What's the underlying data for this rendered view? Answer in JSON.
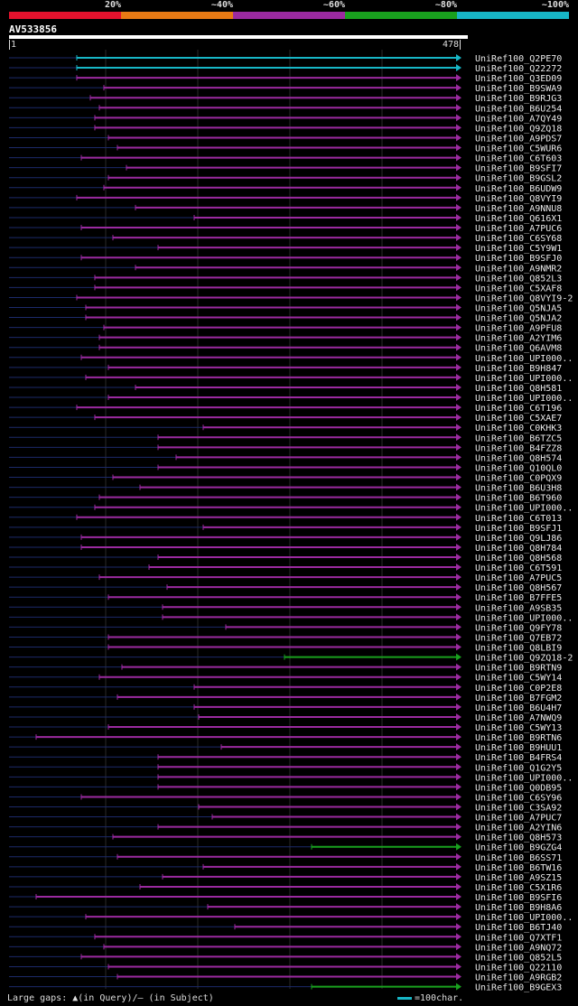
{
  "legend": {
    "labels": [
      "20%",
      "~40%",
      "~60%",
      "~80%",
      "~100%"
    ],
    "colors": [
      "#e3122d",
      "#e87a14",
      "#9b2aa0",
      "#19a11e",
      "#17b6c6"
    ]
  },
  "query": {
    "id": "AV533856",
    "start": "1",
    "end": "478"
  },
  "footer": {
    "gaps_text": "Large gaps: ▲(in Query)/– (in Subject)",
    "scale_text": "=100char."
  },
  "hits": [
    {
      "label": "UniRef100_Q2PE70",
      "start": 0.15,
      "color": "cyan"
    },
    {
      "label": "UniRef100_Q22272",
      "start": 0.15,
      "color": "cyan"
    },
    {
      "label": "UniRef100_Q3ED09",
      "start": 0.15,
      "color": "magenta"
    },
    {
      "label": "UniRef100_B9SWA9",
      "start": 0.21,
      "color": "magenta"
    },
    {
      "label": "UniRef100_B9RJG3",
      "start": 0.18,
      "color": "magenta"
    },
    {
      "label": "UniRef100_B6U254",
      "start": 0.2,
      "color": "magenta"
    },
    {
      "label": "UniRef100_A7QY49",
      "start": 0.19,
      "color": "magenta"
    },
    {
      "label": "UniRef100_Q9ZQ18",
      "start": 0.19,
      "color": "magenta"
    },
    {
      "label": "UniRef100_A9PDS7",
      "start": 0.22,
      "color": "magenta"
    },
    {
      "label": "UniRef100_C5WUR6",
      "start": 0.24,
      "color": "magenta"
    },
    {
      "label": "UniRef100_C6T603",
      "start": 0.16,
      "color": "magenta"
    },
    {
      "label": "UniRef100_B9SFI7",
      "start": 0.26,
      "color": "magenta"
    },
    {
      "label": "UniRef100_B9GSL2",
      "start": 0.22,
      "color": "magenta"
    },
    {
      "label": "UniRef100_B6UDW9",
      "start": 0.21,
      "color": "magenta"
    },
    {
      "label": "UniRef100_Q8VYI9",
      "start": 0.15,
      "color": "magenta"
    },
    {
      "label": "UniRef100_A9NNU8",
      "start": 0.28,
      "color": "magenta"
    },
    {
      "label": "UniRef100_Q616X1",
      "start": 0.41,
      "color": "magenta"
    },
    {
      "label": "UniRef100_A7PUC6",
      "start": 0.16,
      "color": "magenta"
    },
    {
      "label": "UniRef100_C6SY68",
      "start": 0.23,
      "color": "magenta"
    },
    {
      "label": "UniRef100_C5Y9W1",
      "start": 0.33,
      "color": "magenta"
    },
    {
      "label": "UniRef100_B9SFJ0",
      "start": 0.16,
      "color": "magenta"
    },
    {
      "label": "UniRef100_A9NMR2",
      "start": 0.28,
      "color": "magenta"
    },
    {
      "label": "UniRef100_Q852L3",
      "start": 0.19,
      "color": "magenta"
    },
    {
      "label": "UniRef100_C5XAF8",
      "start": 0.19,
      "color": "magenta"
    },
    {
      "label": "UniRef100_Q8VYI9-2",
      "start": 0.15,
      "color": "magenta"
    },
    {
      "label": "UniRef100_Q5NJA5",
      "start": 0.17,
      "color": "magenta"
    },
    {
      "label": "UniRef100_Q5NJA2",
      "start": 0.17,
      "color": "magenta"
    },
    {
      "label": "UniRef100_A9PFU8",
      "start": 0.21,
      "color": "magenta"
    },
    {
      "label": "UniRef100_A2YIM6",
      "start": 0.2,
      "color": "magenta"
    },
    {
      "label": "UniRef100_Q6AVM8",
      "start": 0.2,
      "color": "magenta"
    },
    {
      "label": "UniRef100_UPI000..",
      "start": 0.16,
      "color": "magenta"
    },
    {
      "label": "UniRef100_B9H847",
      "start": 0.22,
      "color": "magenta"
    },
    {
      "label": "UniRef100_UPI000..",
      "start": 0.17,
      "color": "magenta"
    },
    {
      "label": "UniRef100_Q8H581",
      "start": 0.28,
      "color": "magenta"
    },
    {
      "label": "UniRef100_UPI000..",
      "start": 0.22,
      "color": "magenta"
    },
    {
      "label": "UniRef100_C6T196",
      "start": 0.15,
      "color": "magenta"
    },
    {
      "label": "UniRef100_C5XAE7",
      "start": 0.19,
      "color": "magenta"
    },
    {
      "label": "UniRef100_C0KHK3",
      "start": 0.43,
      "color": "magenta"
    },
    {
      "label": "UniRef100_B6TZC5",
      "start": 0.33,
      "color": "magenta"
    },
    {
      "label": "UniRef100_B4FZZ8",
      "start": 0.33,
      "color": "magenta"
    },
    {
      "label": "UniRef100_Q8H574",
      "start": 0.37,
      "color": "magenta"
    },
    {
      "label": "UniRef100_Q10QL0",
      "start": 0.33,
      "color": "magenta"
    },
    {
      "label": "UniRef100_C0PQX9",
      "start": 0.23,
      "color": "magenta"
    },
    {
      "label": "UniRef100_B6U3H8",
      "start": 0.29,
      "color": "magenta"
    },
    {
      "label": "UniRef100_B6T960",
      "start": 0.2,
      "color": "magenta"
    },
    {
      "label": "UniRef100_UPI000..",
      "start": 0.19,
      "color": "magenta"
    },
    {
      "label": "UniRef100_C6T013",
      "start": 0.15,
      "color": "magenta"
    },
    {
      "label": "UniRef100_B9SFJ1",
      "start": 0.43,
      "color": "magenta"
    },
    {
      "label": "UniRef100_Q9LJ86",
      "start": 0.16,
      "color": "magenta"
    },
    {
      "label": "UniRef100_Q8H784",
      "start": 0.16,
      "color": "magenta"
    },
    {
      "label": "UniRef100_Q8H568",
      "start": 0.33,
      "color": "magenta"
    },
    {
      "label": "UniRef100_C6T591",
      "start": 0.31,
      "color": "magenta"
    },
    {
      "label": "UniRef100_A7PUC5",
      "start": 0.2,
      "color": "magenta"
    },
    {
      "label": "UniRef100_Q8H567",
      "start": 0.35,
      "color": "magenta"
    },
    {
      "label": "UniRef100_B7FFE5",
      "start": 0.22,
      "color": "magenta"
    },
    {
      "label": "UniRef100_A9SB35",
      "start": 0.34,
      "color": "magenta"
    },
    {
      "label": "UniRef100_UPI000..",
      "start": 0.34,
      "color": "magenta"
    },
    {
      "label": "UniRef100_Q9FY78",
      "start": 0.48,
      "color": "magenta"
    },
    {
      "label": "UniRef100_Q7EB72",
      "start": 0.22,
      "color": "magenta"
    },
    {
      "label": "UniRef100_Q8LBI9",
      "start": 0.22,
      "color": "magenta"
    },
    {
      "label": "UniRef100_Q9ZQ18-2",
      "start": 0.61,
      "color": "green"
    },
    {
      "label": "UniRef100_B9RTN9",
      "start": 0.25,
      "color": "magenta"
    },
    {
      "label": "UniRef100_C5WY14",
      "start": 0.2,
      "color": "magenta"
    },
    {
      "label": "UniRef100_C0P2E8",
      "start": 0.41,
      "color": "magenta"
    },
    {
      "label": "UniRef100_B7FGM2",
      "start": 0.24,
      "color": "magenta"
    },
    {
      "label": "UniRef100_B6U4H7",
      "start": 0.41,
      "color": "magenta"
    },
    {
      "label": "UniRef100_A7NWQ9",
      "start": 0.42,
      "color": "magenta"
    },
    {
      "label": "UniRef100_C5WY13",
      "start": 0.22,
      "color": "magenta"
    },
    {
      "label": "UniRef100_B9RTN6",
      "start": 0.06,
      "color": "magenta"
    },
    {
      "label": "UniRef100_B9HUU1",
      "start": 0.47,
      "color": "magenta"
    },
    {
      "label": "UniRef100_B4FRS4",
      "start": 0.33,
      "color": "magenta"
    },
    {
      "label": "UniRef100_Q1G2Y5",
      "start": 0.33,
      "color": "magenta"
    },
    {
      "label": "UniRef100_UPI000..",
      "start": 0.33,
      "color": "magenta"
    },
    {
      "label": "UniRef100_Q0DB95",
      "start": 0.33,
      "color": "magenta"
    },
    {
      "label": "UniRef100_C6SY96",
      "start": 0.16,
      "color": "magenta"
    },
    {
      "label": "UniRef100_C3SA92",
      "start": 0.42,
      "color": "magenta"
    },
    {
      "label": "UniRef100_A7PUC7",
      "start": 0.45,
      "color": "magenta"
    },
    {
      "label": "UniRef100_A2YIN6",
      "start": 0.33,
      "color": "magenta"
    },
    {
      "label": "UniRef100_Q8H573",
      "start": 0.23,
      "color": "magenta"
    },
    {
      "label": "UniRef100_B9GZG4",
      "start": 0.67,
      "color": "green"
    },
    {
      "label": "UniRef100_B6SS71",
      "start": 0.24,
      "color": "magenta"
    },
    {
      "label": "UniRef100_B6TW16",
      "start": 0.43,
      "color": "magenta"
    },
    {
      "label": "UniRef100_A9SZ15",
      "start": 0.34,
      "color": "magenta"
    },
    {
      "label": "UniRef100_C5X1R6",
      "start": 0.29,
      "color": "magenta"
    },
    {
      "label": "UniRef100_B9SFI6",
      "start": 0.06,
      "color": "magenta"
    },
    {
      "label": "UniRef100_B9H8A6",
      "start": 0.44,
      "color": "magenta"
    },
    {
      "label": "UniRef100_UPI000..",
      "start": 0.17,
      "color": "magenta"
    },
    {
      "label": "UniRef100_B6TJ40",
      "start": 0.5,
      "color": "magenta"
    },
    {
      "label": "UniRef100_Q7XTF1",
      "start": 0.19,
      "color": "magenta"
    },
    {
      "label": "UniRef100_A9NQ72",
      "start": 0.21,
      "color": "magenta"
    },
    {
      "label": "UniRef100_Q852L5",
      "start": 0.16,
      "color": "magenta"
    },
    {
      "label": "UniRef100_Q22110",
      "start": 0.22,
      "color": "magenta"
    },
    {
      "label": "UniRef100_A9RGB2",
      "start": 0.24,
      "color": "magenta"
    },
    {
      "label": "UniRef100_B9GEX3",
      "start": 0.67,
      "color": "green"
    }
  ]
}
